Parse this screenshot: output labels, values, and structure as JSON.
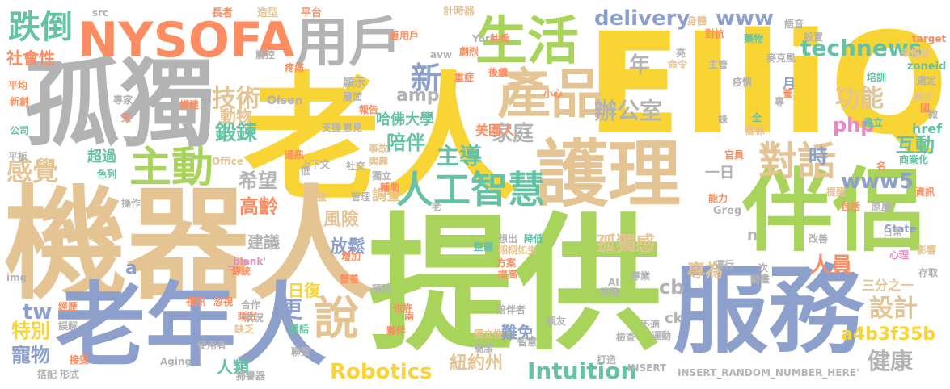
{
  "colors": {
    "yellow": "#f9d435",
    "green": "#a8d45c",
    "blue": "#8da0cb",
    "tan": "#e5c494",
    "orange": "#fc8d62",
    "teal": "#66c2a5",
    "pink": "#e78ac3",
    "gray": "#b3b3b3"
  },
  "words": [
    {
      "text": "老人",
      "color": "yellow"
    },
    {
      "text": "EIliQ",
      "color": "yellow"
    },
    {
      "text": "提供",
      "color": "green"
    },
    {
      "text": "機器人",
      "color": "tan"
    },
    {
      "text": "孤獨",
      "color": "gray"
    },
    {
      "text": "NYSOFA",
      "color": "orange"
    },
    {
      "text": "服務",
      "color": "blue"
    },
    {
      "text": "伴侶",
      "color": "green"
    },
    {
      "text": "老年人",
      "color": "blue"
    },
    {
      "text": "護理",
      "color": "tan"
    },
    {
      "text": "用戶",
      "color": "gray"
    },
    {
      "text": "產品",
      "color": "tan"
    },
    {
      "text": "生活",
      "color": "green"
    },
    {
      "text": "主動",
      "color": "green"
    },
    {
      "text": "跌倒",
      "color": "teal"
    },
    {
      "text": "對話",
      "color": "tan"
    },
    {
      "text": "說",
      "color": "tan"
    },
    {
      "text": "人工智慧",
      "color": "teal"
    },
    {
      "text": "technews",
      "color": "teal"
    },
    {
      "text": "www",
      "color": "blue"
    },
    {
      "text": "delivery",
      "color": "blue"
    },
    {
      "text": "技術",
      "color": "tan"
    },
    {
      "text": "功能",
      "color": "tan"
    },
    {
      "text": "辦公室",
      "color": "gray"
    },
    {
      "text": "新",
      "color": "blue"
    },
    {
      "text": "年",
      "color": "gray"
    },
    {
      "text": "家庭",
      "color": "gray"
    },
    {
      "text": "感覺",
      "color": "tan"
    },
    {
      "text": "鍛鍊",
      "color": "teal"
    },
    {
      "text": "動物",
      "color": "tan"
    },
    {
      "text": "amp",
      "color": "gray"
    },
    {
      "text": "php",
      "color": "pink"
    },
    {
      "text": "主導",
      "color": "teal"
    },
    {
      "text": "陪伴",
      "color": "teal"
    },
    {
      "text": "希望",
      "color": "gray"
    },
    {
      "text": "哈佛大學",
      "color": "teal"
    },
    {
      "text": "www5",
      "color": "blue"
    },
    {
      "text": "互動",
      "color": "teal"
    },
    {
      "text": "時",
      "color": "blue"
    },
    {
      "text": "href",
      "color": "teal"
    },
    {
      "text": "設計",
      "color": "tan"
    },
    {
      "text": "健康",
      "color": "gray"
    },
    {
      "text": "孤獨感",
      "color": "tan"
    },
    {
      "text": "風險",
      "color": "tan"
    },
    {
      "text": "高齡",
      "color": "orange"
    },
    {
      "text": "放鬆",
      "color": "blue"
    },
    {
      "text": "建議",
      "color": "gray"
    },
    {
      "text": "調查",
      "color": "tan"
    },
    {
      "text": "更",
      "color": "blue"
    },
    {
      "text": "專為",
      "color": "tan"
    },
    {
      "text": "人員",
      "color": "orange"
    },
    {
      "text": "cb",
      "color": "gray"
    },
    {
      "text": "日復",
      "color": "yellow"
    },
    {
      "text": "特別",
      "color": "yellow"
    },
    {
      "text": "寵物",
      "color": "blue"
    },
    {
      "text": "tw",
      "color": "blue"
    },
    {
      "text": "Robotics",
      "color": "yellow"
    },
    {
      "text": "紐約州",
      "color": "tan"
    },
    {
      "text": "Intuition",
      "color": "teal"
    },
    {
      "text": "人類",
      "color": "teal"
    },
    {
      "text": "難免",
      "color": "blue"
    },
    {
      "text": "a4b3f35b",
      "color": "yellow"
    },
    {
      "text": "三分之一",
      "color": "tan"
    },
    {
      "text": "社會性",
      "color": "orange"
    },
    {
      "text": "超過",
      "color": "teal"
    },
    {
      "text": "ck",
      "color": "gray"
    },
    {
      "text": "一日",
      "color": "gray"
    },
    {
      "text": "美國人",
      "color": "orange"
    },
    {
      "text": "顯示",
      "color": "gray"
    },
    {
      "text": "月",
      "color": "blue"
    },
    {
      "text": "Olsen",
      "color": "gray"
    },
    {
      "text": "Greg",
      "color": "gray"
    },
    {
      "text": "State",
      "color": "blue"
    },
    {
      "text": "INSERT_RANDOM_NUMBER_HERE'",
      "color": "gray"
    },
    {
      "text": "INSERT",
      "color": "gray"
    },
    {
      "text": "Aging",
      "color": "gray"
    },
    {
      "text": "Office",
      "color": "tan"
    },
    {
      "text": "York",
      "color": "gray"
    },
    {
      "text": "src",
      "color": "gray"
    },
    {
      "text": "img",
      "color": "gray"
    },
    {
      "text": "a",
      "color": "blue"
    },
    {
      "text": "n",
      "color": "gray"
    },
    {
      "text": "_blank'",
      "color": "pink"
    },
    {
      "text": "target",
      "color": "orange"
    },
    {
      "text": "zoneid",
      "color": "teal"
    },
    {
      "text": "avw",
      "color": "gray"
    },
    {
      "text": "AI",
      "color": "gray"
    },
    {
      "text": "專業",
      "color": "gray"
    },
    {
      "text": "長者",
      "color": "orange"
    },
    {
      "text": "造型",
      "color": "tan"
    },
    {
      "text": "平台",
      "color": "orange"
    },
    {
      "text": "計時器",
      "color": "tan"
    },
    {
      "text": "善用戶",
      "color": "orange"
    },
    {
      "text": "劇烈",
      "color": "orange"
    },
    {
      "text": "觸控",
      "color": "gray"
    },
    {
      "text": "疼痛",
      "color": "orange"
    },
    {
      "text": "構建",
      "color": "orange"
    },
    {
      "text": "身體",
      "color": "tan"
    },
    {
      "text": "對抗",
      "color": "orange"
    },
    {
      "text": "語音",
      "color": "gray"
    },
    {
      "text": "設置",
      "color": "gray"
    },
    {
      "text": "麥克風",
      "color": "gray"
    },
    {
      "text": "幸福感",
      "color": "tan"
    },
    {
      "text": "選定",
      "color": "gray"
    },
    {
      "text": "模式",
      "color": "tan"
    },
    {
      "text": "商業化",
      "color": "teal"
    },
    {
      "text": "資訊",
      "color": "orange"
    },
    {
      "text": "影響",
      "color": "tan"
    },
    {
      "text": "存取",
      "color": "gray"
    },
    {
      "text": "心理",
      "color": "pink"
    },
    {
      "text": "改善",
      "color": "gray"
    },
    {
      "text": "原屋",
      "color": "gray"
    },
    {
      "text": "日常",
      "color": "gray"
    },
    {
      "text": "提醒",
      "color": "tan"
    },
    {
      "text": "包括",
      "color": "orange"
    },
    {
      "text": "能力",
      "color": "orange"
    },
    {
      "text": "名",
      "color": "orange"
    },
    {
      "text": "官員",
      "color": "orange"
    },
    {
      "text": "建立",
      "color": "teal"
    },
    {
      "text": "關係",
      "color": "tan"
    },
    {
      "text": "全",
      "color": "teal"
    },
    {
      "text": "錄",
      "color": "gray"
    },
    {
      "text": "疫情",
      "color": "gray"
    },
    {
      "text": "主管",
      "color": "gray"
    },
    {
      "text": "命令",
      "color": "tan"
    },
    {
      "text": "藥物",
      "color": "teal"
    },
    {
      "text": "培訓",
      "color": "teal"
    },
    {
      "text": "國",
      "color": "orange"
    },
    {
      "text": "微",
      "color": "gray"
    },
    {
      "text": "養",
      "color": "orange"
    },
    {
      "text": "專",
      "color": "gray"
    },
    {
      "text": "平均",
      "color": "orange"
    },
    {
      "text": "新創",
      "color": "orange"
    },
    {
      "text": "公司",
      "color": "teal"
    },
    {
      "text": "專家",
      "color": "gray"
    },
    {
      "text": "天",
      "color": "orange"
    },
    {
      "text": "平板",
      "color": "gray"
    },
    {
      "text": "色列",
      "color": "teal"
    },
    {
      "text": "操作",
      "color": "gray"
    },
    {
      "text": "經歷",
      "color": "orange"
    },
    {
      "text": "誤解",
      "color": "gray"
    },
    {
      "text": "接受",
      "color": "orange"
    },
    {
      "text": "搭配",
      "color": "gray"
    },
    {
      "text": "形式",
      "color": "gray"
    },
    {
      "text": "使用者",
      "color": "gray"
    },
    {
      "text": "掃譽器",
      "color": "gray"
    },
    {
      "text": "聯繫",
      "color": "gray"
    },
    {
      "text": "通話",
      "color": "teal"
    },
    {
      "text": "缺乏",
      "color": "tan"
    },
    {
      "text": "睡眠",
      "color": "orange"
    },
    {
      "text": "狀況",
      "color": "gray"
    },
    {
      "text": "合作",
      "color": "gray"
    },
    {
      "text": "視訊",
      "color": "orange"
    },
    {
      "text": "忽視",
      "color": "orange"
    },
    {
      "text": "傳統",
      "color": "orange"
    },
    {
      "text": "增加",
      "color": "orange"
    },
    {
      "text": "營養",
      "color": "orange"
    },
    {
      "text": "計畫",
      "color": "tan"
    },
    {
      "text": "預防",
      "color": "gray"
    },
    {
      "text": "也許",
      "color": "orange"
    },
    {
      "text": "夥伴",
      "color": "orange"
    },
    {
      "text": "兩",
      "color": "orange"
    },
    {
      "text": "陪伴者",
      "color": "gray"
    },
    {
      "text": "獨立性",
      "color": "tan"
    },
    {
      "text": "智慧",
      "color": "gray"
    },
    {
      "text": "簡潔",
      "color": "gray"
    },
    {
      "text": "打造",
      "color": "gray"
    },
    {
      "text": "運動",
      "color": "gray"
    },
    {
      "text": "檢查",
      "color": "gray"
    },
    {
      "text": "不適",
      "color": "gray"
    },
    {
      "text": "親友",
      "color": "gray"
    },
    {
      "text": "策略",
      "color": "gray"
    },
    {
      "text": "動畫",
      "color": "gray"
    },
    {
      "text": "運行",
      "color": "gray"
    },
    {
      "text": "次",
      "color": "gray"
    },
    {
      "text": "想出",
      "color": "gray"
    },
    {
      "text": "降低",
      "color": "teal"
    },
    {
      "text": "栩栩如生",
      "color": "tan"
    },
    {
      "text": "方案",
      "color": "orange"
    },
    {
      "text": "提高",
      "color": "orange"
    },
    {
      "text": "整體",
      "color": "teal"
    },
    {
      "text": "共乘",
      "color": "orange"
    },
    {
      "text": "後續",
      "color": "orange"
    },
    {
      "text": "重症",
      "color": "orange"
    },
    {
      "text": "小心",
      "color": "orange"
    },
    {
      "text": "層面",
      "color": "gray"
    },
    {
      "text": "報告",
      "color": "orange"
    },
    {
      "text": "支援",
      "color": "gray"
    },
    {
      "text": "意見",
      "color": "gray"
    },
    {
      "text": "事故",
      "color": "tan"
    },
    {
      "text": "興趣",
      "color": "tan"
    },
    {
      "text": "通訊",
      "color": "orange"
    },
    {
      "text": "上下文",
      "color": "gray"
    },
    {
      "text": "社交",
      "color": "gray"
    },
    {
      "text": "低",
      "color": "gray"
    },
    {
      "text": "獨立",
      "color": "gray"
    },
    {
      "text": "輔助",
      "color": "orange"
    },
    {
      "text": "管理",
      "color": "gray"
    },
    {
      "text": "老",
      "color": "gray"
    },
    {
      "text": "亮",
      "color": "gray"
    }
  ]
}
